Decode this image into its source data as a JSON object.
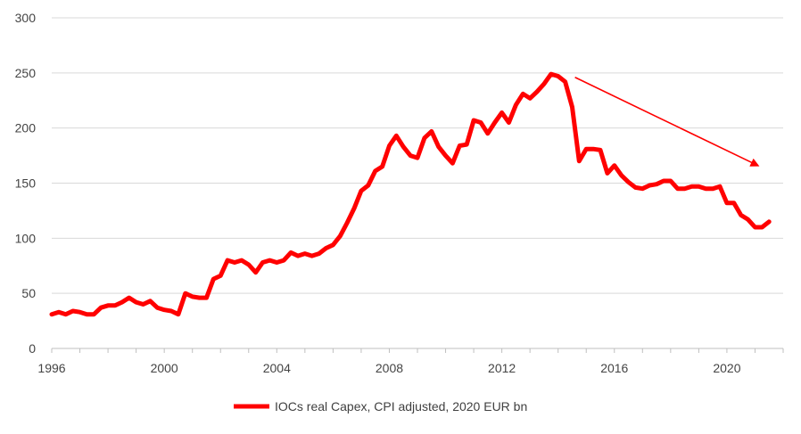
{
  "chart_data": {
    "type": "line",
    "title": "",
    "xlabel": "",
    "ylabel": "",
    "xlim": [
      1996,
      2022
    ],
    "ylim": [
      0,
      300
    ],
    "grid": "horizontal",
    "y_ticks": [
      0,
      50,
      100,
      150,
      200,
      250,
      300
    ],
    "x_ticks": [
      1996,
      2000,
      2004,
      2008,
      2012,
      2016,
      2020
    ],
    "legend_position": "bottom-center",
    "series": [
      {
        "name": "IOCs real Capex, CPI adjusted, 2020 EUR bn",
        "color": "#ff0000",
        "points": [
          [
            1996.0,
            31
          ],
          [
            1996.25,
            33
          ],
          [
            1996.5,
            31
          ],
          [
            1996.75,
            34
          ],
          [
            1997.0,
            33
          ],
          [
            1997.25,
            31
          ],
          [
            1997.5,
            31
          ],
          [
            1997.75,
            37
          ],
          [
            1998.0,
            39
          ],
          [
            1998.25,
            39
          ],
          [
            1998.5,
            42
          ],
          [
            1998.75,
            46
          ],
          [
            1999.0,
            42
          ],
          [
            1999.25,
            40
          ],
          [
            1999.5,
            43
          ],
          [
            1999.75,
            37
          ],
          [
            2000.0,
            35
          ],
          [
            2000.25,
            34
          ],
          [
            2000.5,
            31
          ],
          [
            2000.75,
            50
          ],
          [
            2001.0,
            47
          ],
          [
            2001.25,
            46
          ],
          [
            2001.5,
            46
          ],
          [
            2001.75,
            63
          ],
          [
            2002.0,
            66
          ],
          [
            2002.25,
            80
          ],
          [
            2002.5,
            78
          ],
          [
            2002.75,
            80
          ],
          [
            2003.0,
            76
          ],
          [
            2003.25,
            69
          ],
          [
            2003.5,
            78
          ],
          [
            2003.75,
            80
          ],
          [
            2004.0,
            78
          ],
          [
            2004.25,
            80
          ],
          [
            2004.5,
            87
          ],
          [
            2004.75,
            84
          ],
          [
            2005.0,
            86
          ],
          [
            2005.25,
            84
          ],
          [
            2005.5,
            86
          ],
          [
            2005.75,
            91
          ],
          [
            2006.0,
            94
          ],
          [
            2006.25,
            102
          ],
          [
            2006.5,
            114
          ],
          [
            2006.75,
            127
          ],
          [
            2007.0,
            143
          ],
          [
            2007.25,
            148
          ],
          [
            2007.5,
            161
          ],
          [
            2007.75,
            165
          ],
          [
            2008.0,
            184
          ],
          [
            2008.25,
            193
          ],
          [
            2008.5,
            183
          ],
          [
            2008.75,
            175
          ],
          [
            2009.0,
            173
          ],
          [
            2009.25,
            191
          ],
          [
            2009.5,
            197
          ],
          [
            2009.75,
            183
          ],
          [
            2010.0,
            175
          ],
          [
            2010.25,
            168
          ],
          [
            2010.5,
            184
          ],
          [
            2010.75,
            185
          ],
          [
            2011.0,
            207
          ],
          [
            2011.25,
            205
          ],
          [
            2011.5,
            195
          ],
          [
            2011.75,
            205
          ],
          [
            2012.0,
            214
          ],
          [
            2012.25,
            205
          ],
          [
            2012.5,
            221
          ],
          [
            2012.75,
            231
          ],
          [
            2013.0,
            227
          ],
          [
            2013.25,
            233
          ],
          [
            2013.5,
            240
          ],
          [
            2013.75,
            249
          ],
          [
            2014.0,
            247
          ],
          [
            2014.25,
            242
          ],
          [
            2014.5,
            219
          ],
          [
            2014.75,
            170
          ],
          [
            2015.0,
            181
          ],
          [
            2015.25,
            181
          ],
          [
            2015.5,
            180
          ],
          [
            2015.75,
            159
          ],
          [
            2016.0,
            166
          ],
          [
            2016.25,
            157
          ],
          [
            2016.5,
            151
          ],
          [
            2016.75,
            146
          ],
          [
            2017.0,
            145
          ],
          [
            2017.25,
            148
          ],
          [
            2017.5,
            149
          ],
          [
            2017.75,
            152
          ],
          [
            2018.0,
            152
          ],
          [
            2018.25,
            145
          ],
          [
            2018.5,
            145
          ],
          [
            2018.75,
            147
          ],
          [
            2019.0,
            147
          ],
          [
            2019.25,
            145
          ],
          [
            2019.5,
            145
          ],
          [
            2019.75,
            147
          ],
          [
            2020.0,
            132
          ],
          [
            2020.25,
            132
          ],
          [
            2020.5,
            121
          ],
          [
            2020.75,
            117
          ],
          [
            2021.0,
            110
          ],
          [
            2021.25,
            110
          ],
          [
            2021.5,
            115
          ]
        ]
      }
    ],
    "annotations": [
      {
        "type": "arrow",
        "color": "#ff0000",
        "from": [
          2014.6,
          246
        ],
        "to": [
          2021.1,
          166
        ]
      }
    ]
  }
}
